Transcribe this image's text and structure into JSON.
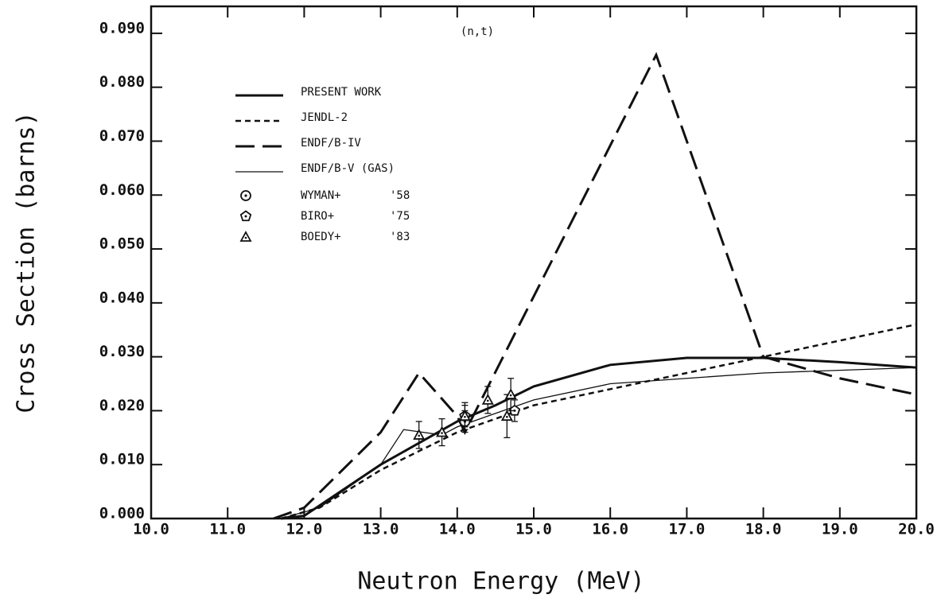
{
  "chart_data": {
    "type": "line",
    "annotation": "(n,t)",
    "xlabel": "Neutron Energy (MeV)",
    "ylabel": "Cross Section (barns)",
    "xlim": [
      10,
      20
    ],
    "ylim": [
      0,
      0.095
    ],
    "xticks": [
      {
        "value": 10,
        "label": "10.0"
      },
      {
        "value": 11,
        "label": "11.0"
      },
      {
        "value": 12,
        "label": "12.0"
      },
      {
        "value": 13,
        "label": "13.0"
      },
      {
        "value": 14,
        "label": "14.0"
      },
      {
        "value": 15,
        "label": "15.0"
      },
      {
        "value": 16,
        "label": "16.0"
      },
      {
        "value": 17,
        "label": "17.0"
      },
      {
        "value": 18,
        "label": "18.0"
      },
      {
        "value": 19,
        "label": "19.0"
      },
      {
        "value": 20,
        "label": "20.0"
      }
    ],
    "yticks": [
      {
        "value": 0,
        "label": "0.000"
      },
      {
        "value": 0.01,
        "label": "0.010"
      },
      {
        "value": 0.02,
        "label": "0.020"
      },
      {
        "value": 0.03,
        "label": "0.030"
      },
      {
        "value": 0.04,
        "label": "0.040"
      },
      {
        "value": 0.05,
        "label": "0.050"
      },
      {
        "value": 0.06,
        "label": "0.060"
      },
      {
        "value": 0.07,
        "label": "0.070"
      },
      {
        "value": 0.08,
        "label": "0.080"
      },
      {
        "value": 0.09,
        "label": "0.090"
      }
    ],
    "series": [
      {
        "name": "PRESENT WORK",
        "color": "#111",
        "width": 3,
        "dash": [],
        "x": [
          11.7,
          12.0,
          13.0,
          14.0,
          14.5,
          15.0,
          16.0,
          17.0,
          18.0,
          19.0,
          20.0
        ],
        "values": [
          0,
          0.0005,
          0.01,
          0.018,
          0.021,
          0.0245,
          0.0285,
          0.0298,
          0.0298,
          0.029,
          0.028
        ]
      },
      {
        "name": "JENDL-2",
        "color": "#111",
        "width": 2.5,
        "dash": [
          7,
          5
        ],
        "x": [
          11.7,
          12.2,
          13.0,
          14.0,
          15.0,
          16.0,
          17.0,
          18.0,
          19.0,
          20.0
        ],
        "values": [
          0,
          0.002,
          0.009,
          0.016,
          0.021,
          0.024,
          0.027,
          0.03,
          0.033,
          0.036
        ]
      },
      {
        "name": "ENDF/B-IV",
        "color": "#111",
        "width": 3,
        "dash": [
          24,
          10
        ],
        "x": [
          11.6,
          12.0,
          13.0,
          13.5,
          14.0,
          14.1,
          16.6,
          18.0,
          19.0,
          20.0
        ],
        "values": [
          0,
          0.002,
          0.016,
          0.027,
          0.019,
          0.016,
          0.086,
          0.03,
          0.026,
          0.023
        ]
      },
      {
        "name": "ENDF/B-V (GAS)",
        "color": "#111",
        "width": 1.3,
        "dash": [],
        "x": [
          11.7,
          12.2,
          13.0,
          13.3,
          13.8,
          14.0,
          15.0,
          16.0,
          17.0,
          18.0,
          20.0
        ],
        "values": [
          0,
          0.002,
          0.01,
          0.0165,
          0.0155,
          0.017,
          0.022,
          0.025,
          0.026,
          0.027,
          0.028
        ]
      }
    ],
    "points": [
      {
        "name": "WYMAN+",
        "year": "'58",
        "marker": "circle-dot",
        "color": "#111",
        "x": [
          14.1
        ],
        "values": [
          0.018
        ],
        "errors": [
          0.002
        ]
      },
      {
        "name": "BIRO+",
        "year": "'75",
        "marker": "pentagon",
        "color": "#111",
        "x": [
          14.1,
          14.75
        ],
        "values": [
          0.019,
          0.02
        ],
        "errors": [
          0.002,
          0.002
        ]
      },
      {
        "name": "BOEDY+",
        "year": "'83",
        "marker": "triangle",
        "color": "#111",
        "x": [
          13.5,
          13.8,
          14.1,
          14.4,
          14.65,
          14.7
        ],
        "values": [
          0.0155,
          0.016,
          0.019,
          0.022,
          0.019,
          0.023
        ],
        "errors": [
          0.0025,
          0.0025,
          0.0025,
          0.0025,
          0.004,
          0.003
        ]
      }
    ]
  }
}
